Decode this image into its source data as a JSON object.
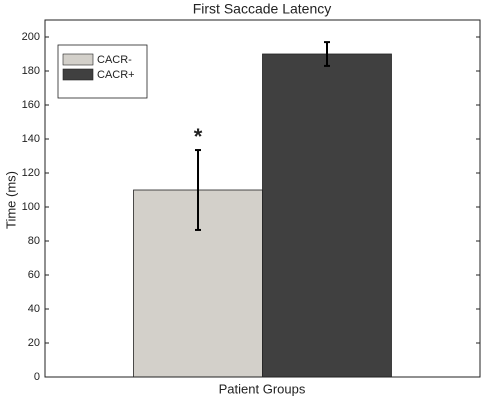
{
  "chart_data": {
    "type": "bar",
    "title": "First Saccade Latency",
    "xlabel": "Patient Groups",
    "ylabel": "Time (ms)",
    "categories": [
      null
    ],
    "series": [
      {
        "name": "CACR-",
        "color": "#d3d0ca",
        "values": [
          110
        ],
        "errors": [
          23.5
        ]
      },
      {
        "name": "CACR+",
        "color": "#404040",
        "values": [
          190
        ],
        "errors": [
          7
        ]
      }
    ],
    "annotation": "*",
    "ylim": [
      0,
      210
    ],
    "yticks": [
      0,
      20,
      40,
      60,
      80,
      100,
      120,
      140,
      160,
      180,
      200
    ],
    "legend": "upper left"
  }
}
